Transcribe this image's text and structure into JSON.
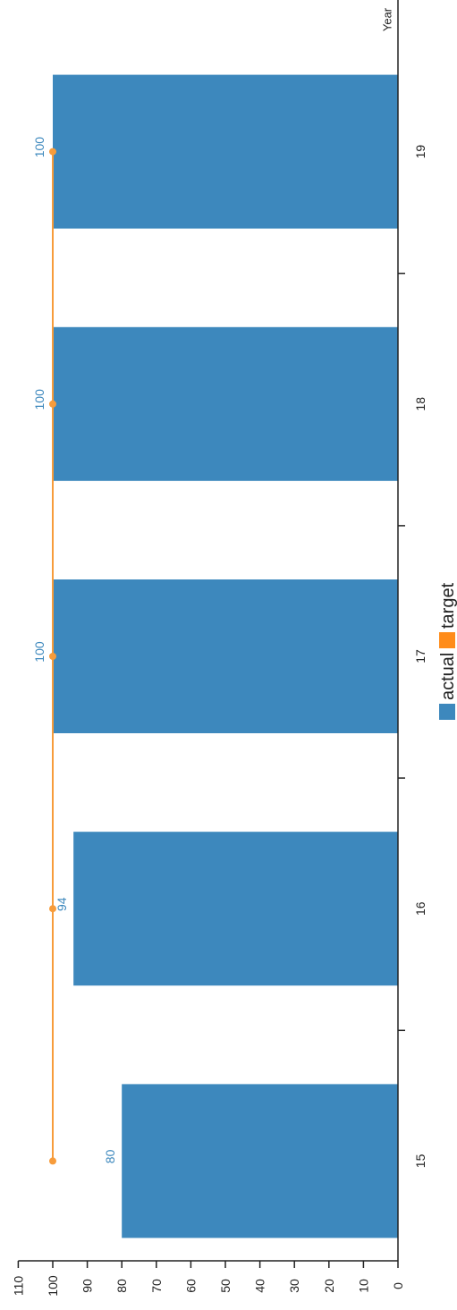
{
  "chart_data": {
    "type": "bar",
    "orientation": "vertical-values-rotated",
    "categories": [
      "15",
      "16",
      "17",
      "18",
      "19"
    ],
    "series": [
      {
        "name": "actual",
        "type": "bar",
        "values": [
          80,
          94,
          100,
          100,
          100
        ],
        "color": "#3d88bd",
        "data_labels": [
          "80",
          "94",
          "100",
          "100",
          "100"
        ]
      },
      {
        "name": "target",
        "type": "line",
        "values": [
          100,
          100,
          100,
          100,
          100
        ],
        "color": "#f79c3b"
      }
    ],
    "xlabel": "Year",
    "ylabel": "",
    "ylim": [
      0,
      110
    ],
    "yticks": [
      0,
      10,
      20,
      30,
      40,
      50,
      60,
      70,
      80,
      90,
      100,
      110
    ],
    "ytick_labels": [
      "0",
      "10",
      "20",
      "30",
      "40",
      "50",
      "60",
      "70",
      "80",
      "90",
      "100",
      "110"
    ],
    "grid": false,
    "legend": {
      "position": "center",
      "items": [
        "actual",
        "target"
      ]
    }
  },
  "colors": {
    "actual": "#3d88bd",
    "target": "#f79c3b",
    "target_legend": "#ff8c1a",
    "axis": "#222222"
  }
}
